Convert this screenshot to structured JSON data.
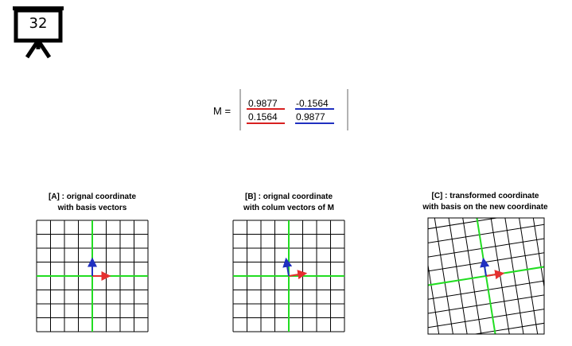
{
  "slide": {
    "number": "32"
  },
  "matrix": {
    "label": "M =",
    "rows": [
      [
        "0.9877",
        "-0.1564"
      ],
      [
        "0.1564",
        "0.9877"
      ]
    ]
  },
  "panels": [
    {
      "title_line1": "[A] : orignal coordinate",
      "title_line2": "with basis vectors"
    },
    {
      "title_line1": "[B] : orignal coordinate",
      "title_line2": "with colum vectors of M"
    },
    {
      "title_line1": "[C] : transformed coordinate",
      "title_line2": "with basis on the new coordinate"
    }
  ],
  "colors": {
    "basis_x": "#e53030",
    "basis_y": "#2030c0",
    "axis": "#22dd22",
    "grid": "#000000"
  },
  "icons": {
    "slide": "presentation-board-icon"
  }
}
